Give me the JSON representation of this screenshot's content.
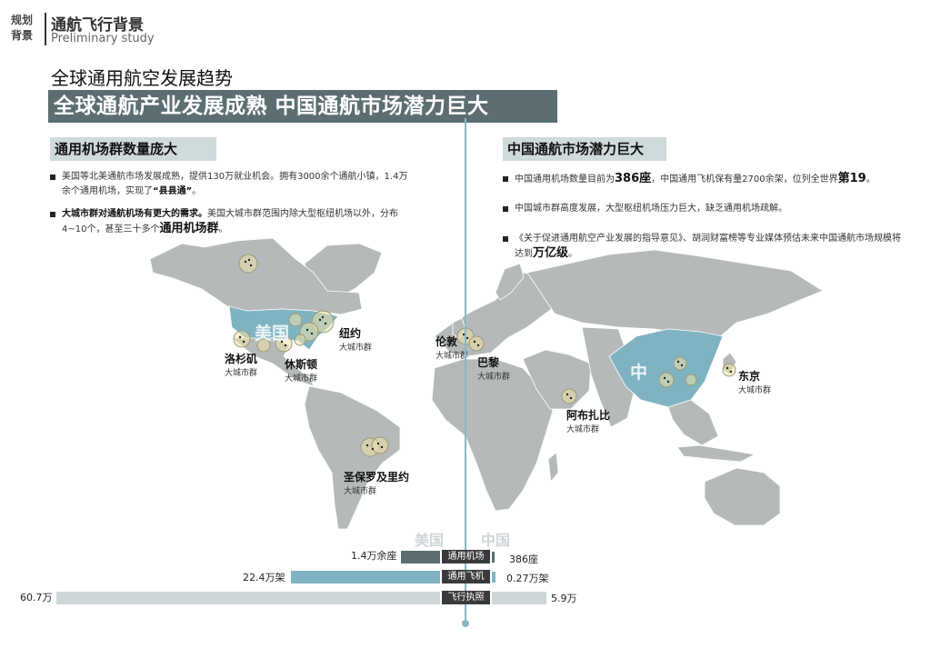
{
  "header": {
    "tag_line1": "规划",
    "tag_line2": "背景",
    "title": "通航飞行背景",
    "subtitle": "Preliminary study"
  },
  "section_title": "全球通用航空发展趋势",
  "banner": "全球通航产业发展成熟 中国通航市场潜力巨大",
  "left": {
    "heading": "通用机场群数量庞大",
    "b1_text": "美国等北美通航市场发展成熟，提供130万就业机会。拥有3000余个通航小镇，1.4万余个通用机场，实现了",
    "b1_bold": "“县县通”",
    "b1_end": "。",
    "b2_bold": "大城市群对通航机场有更大的需求。",
    "b2_text": "美国大城市群范围内除大型枢纽机场以外，分布4~10个，甚至三十多个",
    "b2_big": "通用机场群",
    "b2_end": "。"
  },
  "right": {
    "heading": "中国通航市场潜力巨大",
    "b3_text": "中国通用机场数量目前为",
    "b3_bold1": "386座",
    "b3_text2": "，中国通用飞机保有量2700余架，位列全世界",
    "b3_bold2": "第19",
    "b3_end": "。",
    "b4_text": "中国城市群高度发展，大型枢纽机场压力巨大，缺乏通用机场疏解。",
    "b5_text": "《关于促进通用航空产业发展的指导意见》、胡润财富榜等专业媒体预估未来中国通航市场规模将达到",
    "b5_big": "万亿级",
    "b5_end": "。"
  },
  "map": {
    "usa_label": "美国",
    "china_label": "中",
    "cities": [
      {
        "name": "纽约",
        "sub": "大城市群"
      },
      {
        "name": "洛杉矶",
        "sub": "大城市群"
      },
      {
        "name": "休斯顿",
        "sub": "大城市群"
      },
      {
        "name": "圣保罗及里约",
        "sub": "大城市群"
      },
      {
        "name": "伦敦",
        "sub": "大城市群"
      },
      {
        "name": "巴黎",
        "sub": "大城市群"
      },
      {
        "name": "阿布扎比",
        "sub": "大城市群"
      },
      {
        "name": "东京",
        "sub": "大城市群"
      }
    ]
  },
  "comparison": {
    "left_label": "美国",
    "right_label": "中国",
    "rows": [
      {
        "category": "通用机场",
        "usa_value": "1.4万余座",
        "china_value": "386座"
      },
      {
        "category": "通用飞机",
        "usa_value": "22.4万架",
        "china_value": "0.27万架"
      },
      {
        "category": "飞行执照",
        "usa_value": "60.7万",
        "china_value": "5.9万"
      }
    ]
  },
  "colors": {
    "banner": "#5c6e72",
    "accent": "#8ab7c2",
    "land": "#b6b9ba",
    "highlight": "#7fb3c1",
    "bar_dark": "#5c6e72",
    "bar_light": "#cfd6d8"
  }
}
